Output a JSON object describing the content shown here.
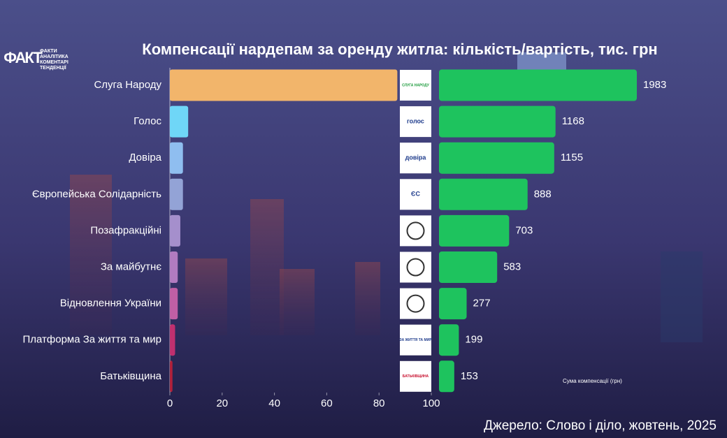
{
  "brand": {
    "mark": "ФАКТ",
    "lines": [
      "ФАКТИ",
      "АНАЛІТИКА",
      "КОМЕНТАРІ",
      "ТЕНДЕНЦІЇ"
    ]
  },
  "chart_data": {
    "type": "bar",
    "title": "Компенсації нардепам за оренду житла: кількість/вартість, тис. грн",
    "categories": [
      "Слуга Народу",
      "Голос",
      "Довіра",
      "Європейська Солідарність",
      "Позафракційні",
      "За майбутнє",
      "Відновлення України",
      "Платформа За життя та мир",
      "Батьківщина"
    ],
    "series": [
      {
        "colors": [
          "#f2b56b",
          "#6fd6f7",
          "#8fbef0",
          "#93a3d6",
          "#a58fcc",
          "#b17bc0",
          "#c05fa5",
          "#c0306f",
          "#b0203a"
        ],
        "values": [
          87,
          7,
          5,
          5,
          4,
          3,
          3,
          2,
          1
        ]
      },
      {
        "name": "Сума компенсації (грн)",
        "color": "#1ec35e",
        "values": [
          1983,
          1168,
          1155,
          888,
          703,
          583,
          277,
          199,
          153
        ]
      }
    ],
    "party_logos": [
      "СЛУГА НАРОДУ",
      "голос",
      "довіра",
      "ЄС",
      "",
      "",
      "",
      "ЗА ЖИТТЯ ТА МИР",
      "БАТЬКІВЩИНА"
    ],
    "xlim": [
      0,
      100
    ],
    "xticks": [
      0,
      20,
      40,
      60,
      80,
      100
    ],
    "source": "Джерело: Слово і діло, жовтень, 2025"
  }
}
